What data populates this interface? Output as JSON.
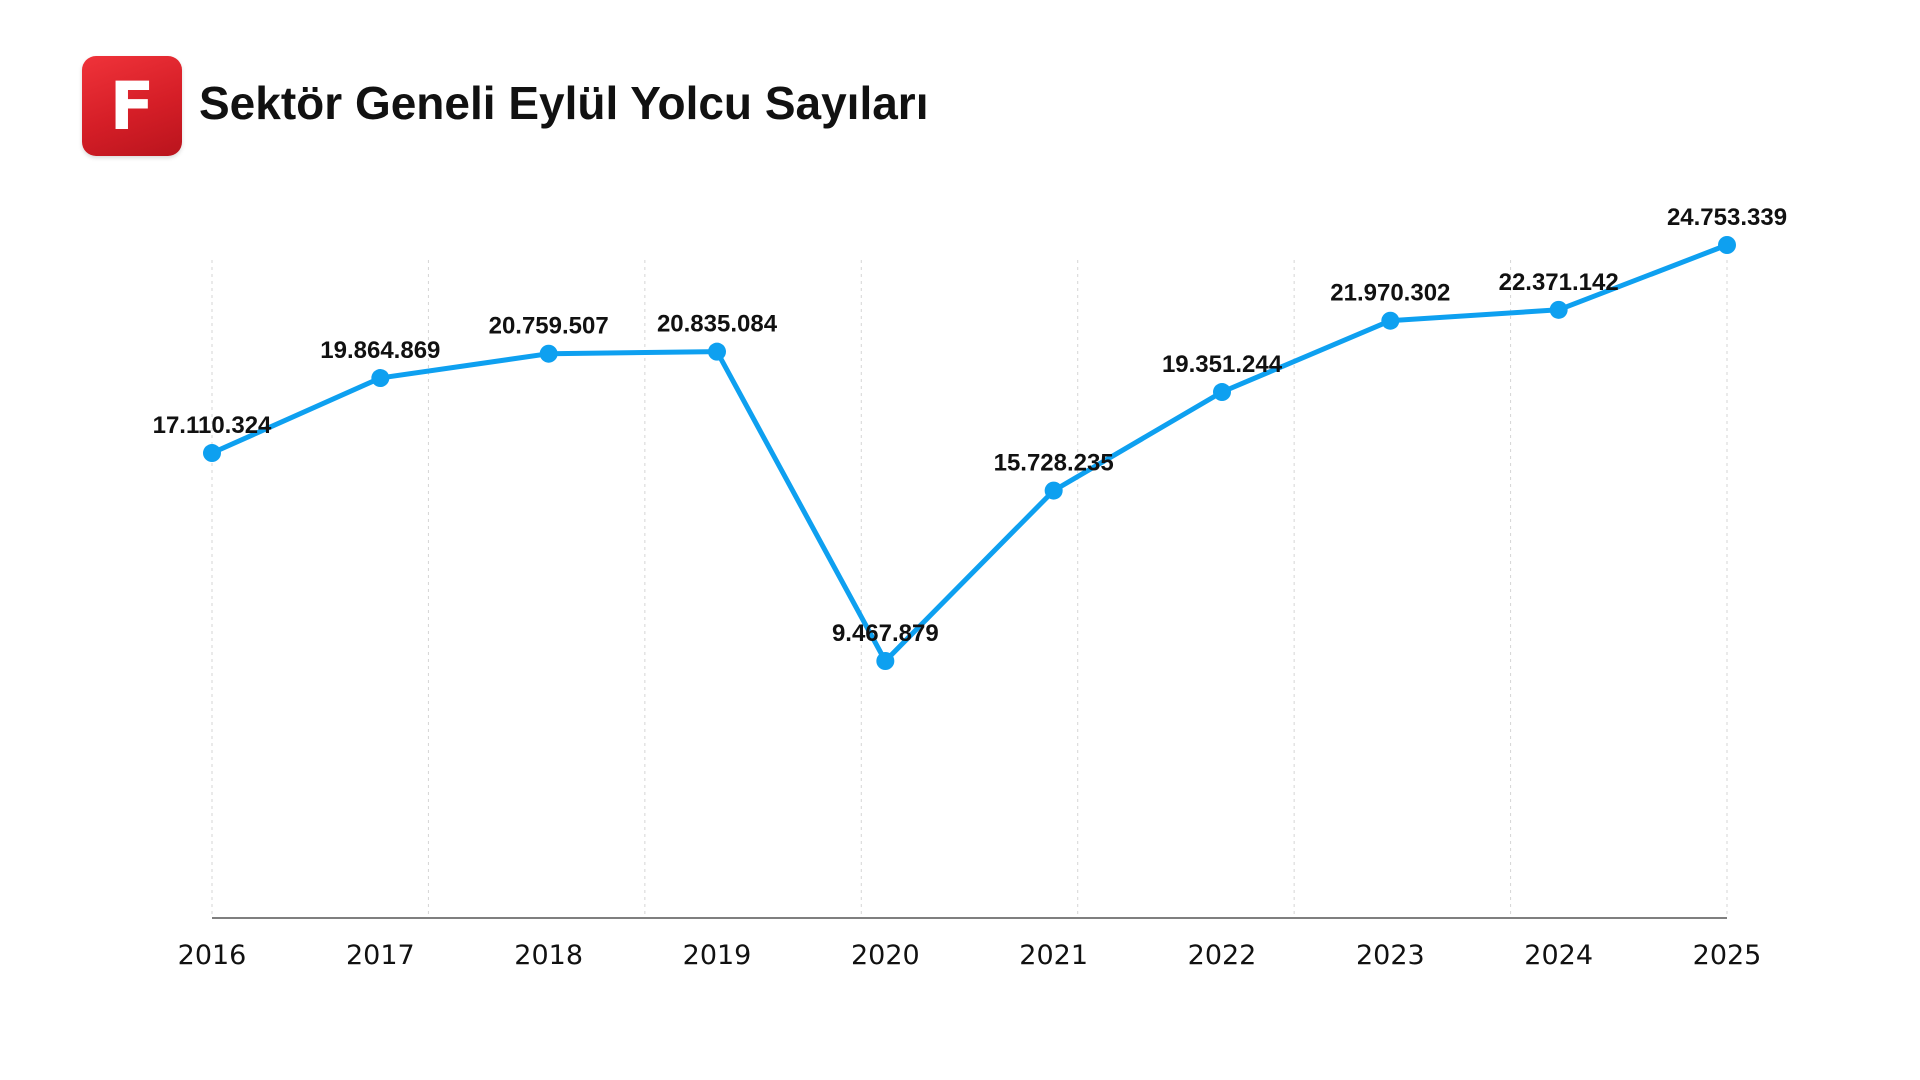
{
  "header": {
    "logo_letter": "F",
    "title": "Sektör Geneli Eylül Yolcu Sayıları"
  },
  "colors": {
    "line": "#0ea0f0",
    "logo": "#d51e27"
  },
  "chart_data": {
    "type": "line",
    "title": "Sektör Geneli Eylül Yolcu Sayıları",
    "xlabel": "",
    "ylabel": "",
    "grid": "vertical dashed",
    "categories": [
      "2016",
      "2017",
      "2018",
      "2019",
      "2020",
      "2021",
      "2022",
      "2023",
      "2024",
      "2025"
    ],
    "values": [
      17110324,
      19864869,
      20759507,
      20835084,
      9467879,
      15728235,
      19351244,
      21970302,
      22371142,
      24753339
    ],
    "labels": [
      "17.110.324",
      "19.864.869",
      "20.759.507",
      "20.835.084",
      "9.467.879",
      "15.728.235",
      "19.351.244",
      "21.970.302",
      "22.371.142",
      "24.753.339"
    ]
  }
}
